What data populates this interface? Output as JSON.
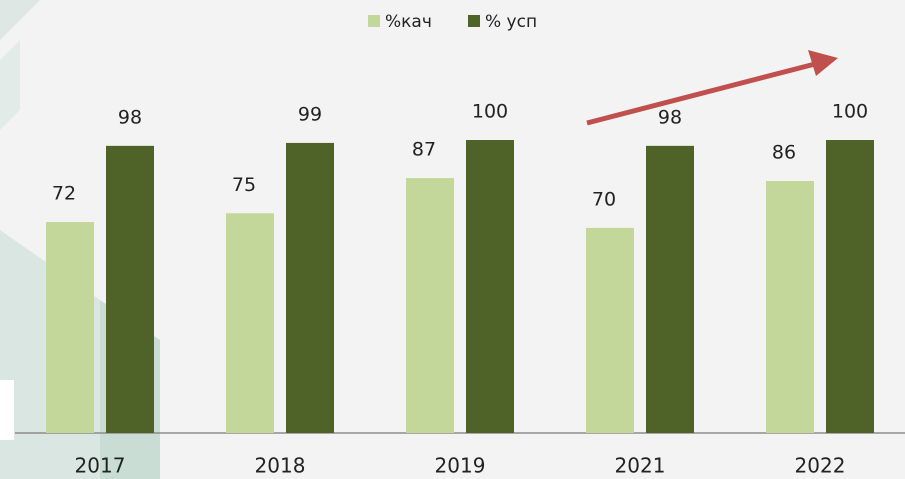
{
  "chart_data": {
    "type": "bar",
    "categories": [
      "2017",
      "2018",
      "2019",
      "2021",
      "2022"
    ],
    "series": [
      {
        "name": "%кач",
        "color": "#c4d79b",
        "values": [
          72,
          75,
          87,
          70,
          86
        ]
      },
      {
        "name": "% усп",
        "color": "#4f6228",
        "values": [
          98,
          99,
          100,
          98,
          100
        ]
      }
    ],
    "ylim": [
      0,
      100
    ],
    "legend": "top"
  }
}
